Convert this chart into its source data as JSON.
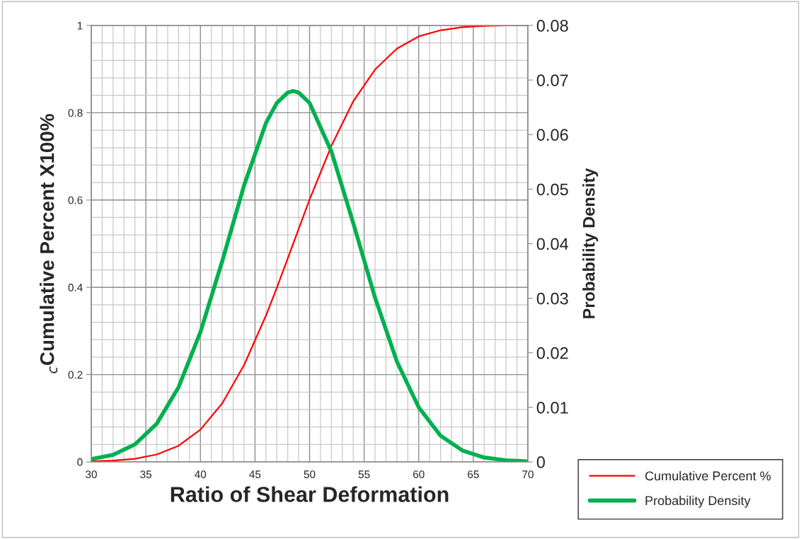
{
  "chart_data": {
    "type": "line",
    "xlabel": "Ratio of Shear Deformation",
    "ylabel": "$_{c}$Cumulative Percent X100%",
    "y2label": "Probability Density",
    "x": [
      30,
      32,
      34,
      36,
      38,
      40,
      42,
      44,
      46,
      47,
      48,
      48.5,
      49,
      50,
      52,
      54,
      56,
      58,
      60,
      62,
      64,
      66,
      68,
      70
    ],
    "series": [
      {
        "name": "Cumulative Percent %",
        "color": "#ff0000",
        "values": [
          0.001,
          0.003,
          0.007,
          0.017,
          0.037,
          0.074,
          0.134,
          0.222,
          0.335,
          0.399,
          0.466,
          0.5,
          0.534,
          0.601,
          0.724,
          0.826,
          0.899,
          0.947,
          0.975,
          0.989,
          0.996,
          0.999,
          1.0,
          1.0
        ]
      },
      {
        "name": "Probability Density",
        "color": "#00b050",
        "axis": "y2",
        "values": [
          0.0005,
          0.0013,
          0.0032,
          0.007,
          0.0137,
          0.0238,
          0.0368,
          0.0507,
          0.0621,
          0.0658,
          0.0677,
          0.068,
          0.0677,
          0.0658,
          0.0569,
          0.0438,
          0.0301,
          0.0184,
          0.01,
          0.0048,
          0.0021,
          0.0008,
          0.0003,
          0.0001
        ]
      }
    ],
    "xlim": [
      30,
      70
    ],
    "xticks": [
      30,
      35,
      40,
      45,
      50,
      55,
      60,
      65,
      70
    ],
    "ylim": [
      0,
      1
    ],
    "yticks": [
      0,
      0.2,
      0.4,
      0.6,
      0.8,
      1
    ],
    "y2lim": [
      0,
      0.08
    ],
    "y2ticks": [
      0,
      0.01,
      0.02,
      0.03,
      0.04,
      0.05,
      0.06,
      0.07,
      0.08
    ],
    "grid": true,
    "legend": "bottom right",
    "marker": "none",
    "line_style": "solid"
  }
}
